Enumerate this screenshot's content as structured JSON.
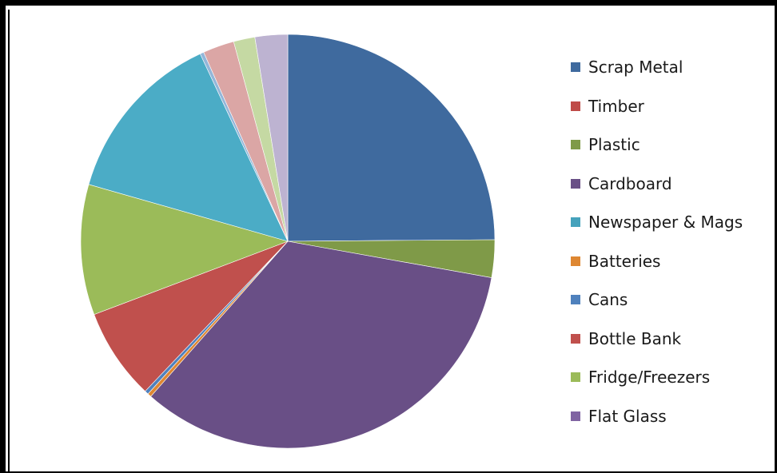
{
  "chart_data": {
    "type": "pie",
    "title": "",
    "legend_position": "right",
    "start_angle_deg": 0,
    "direction": "clockwise",
    "slices": [
      {
        "label": "Scrap Metal",
        "value": 25.4,
        "color": "#3F6A9E",
        "legend": true
      },
      {
        "label": "Timber",
        "value": 0.0,
        "color": "#BF4B48",
        "legend": true
      },
      {
        "label": "Plastic",
        "value": 3.0,
        "color": "#7F9A48",
        "legend": true
      },
      {
        "label": "Cardboard",
        "value": 34.4,
        "color": "#694F86",
        "legend": true
      },
      {
        "label": "Newspaper & Mags",
        "value": 0.0,
        "color": "#45A2BC",
        "legend": true
      },
      {
        "label": "Batteries",
        "value": 0.3,
        "color": "#DE8732",
        "legend": true
      },
      {
        "label": "Cans",
        "value": 0.3,
        "color": "#4F81BD",
        "legend": true
      },
      {
        "label": "Bottle Bank",
        "value": 7.3,
        "color": "#C0504D",
        "legend": true
      },
      {
        "label": "Fridge/Freezers",
        "value": 10.4,
        "color": "#9BBB59",
        "legend": true
      },
      {
        "label": "Flat Glass",
        "value": 0.0,
        "color": "#8064A2",
        "legend": true
      },
      {
        "label": "",
        "value": 13.9,
        "color": "#4BACC6",
        "legend": false
      },
      {
        "label": "",
        "value": 0.3,
        "color": "#93B6D9",
        "legend": false
      },
      {
        "label": "",
        "value": 2.5,
        "color": "#DBA6A5",
        "legend": false
      },
      {
        "label": "",
        "value": 1.7,
        "color": "#C5D9A3",
        "legend": false
      },
      {
        "label": "",
        "value": 2.6,
        "color": "#BDB3D1",
        "legend": false
      }
    ]
  }
}
